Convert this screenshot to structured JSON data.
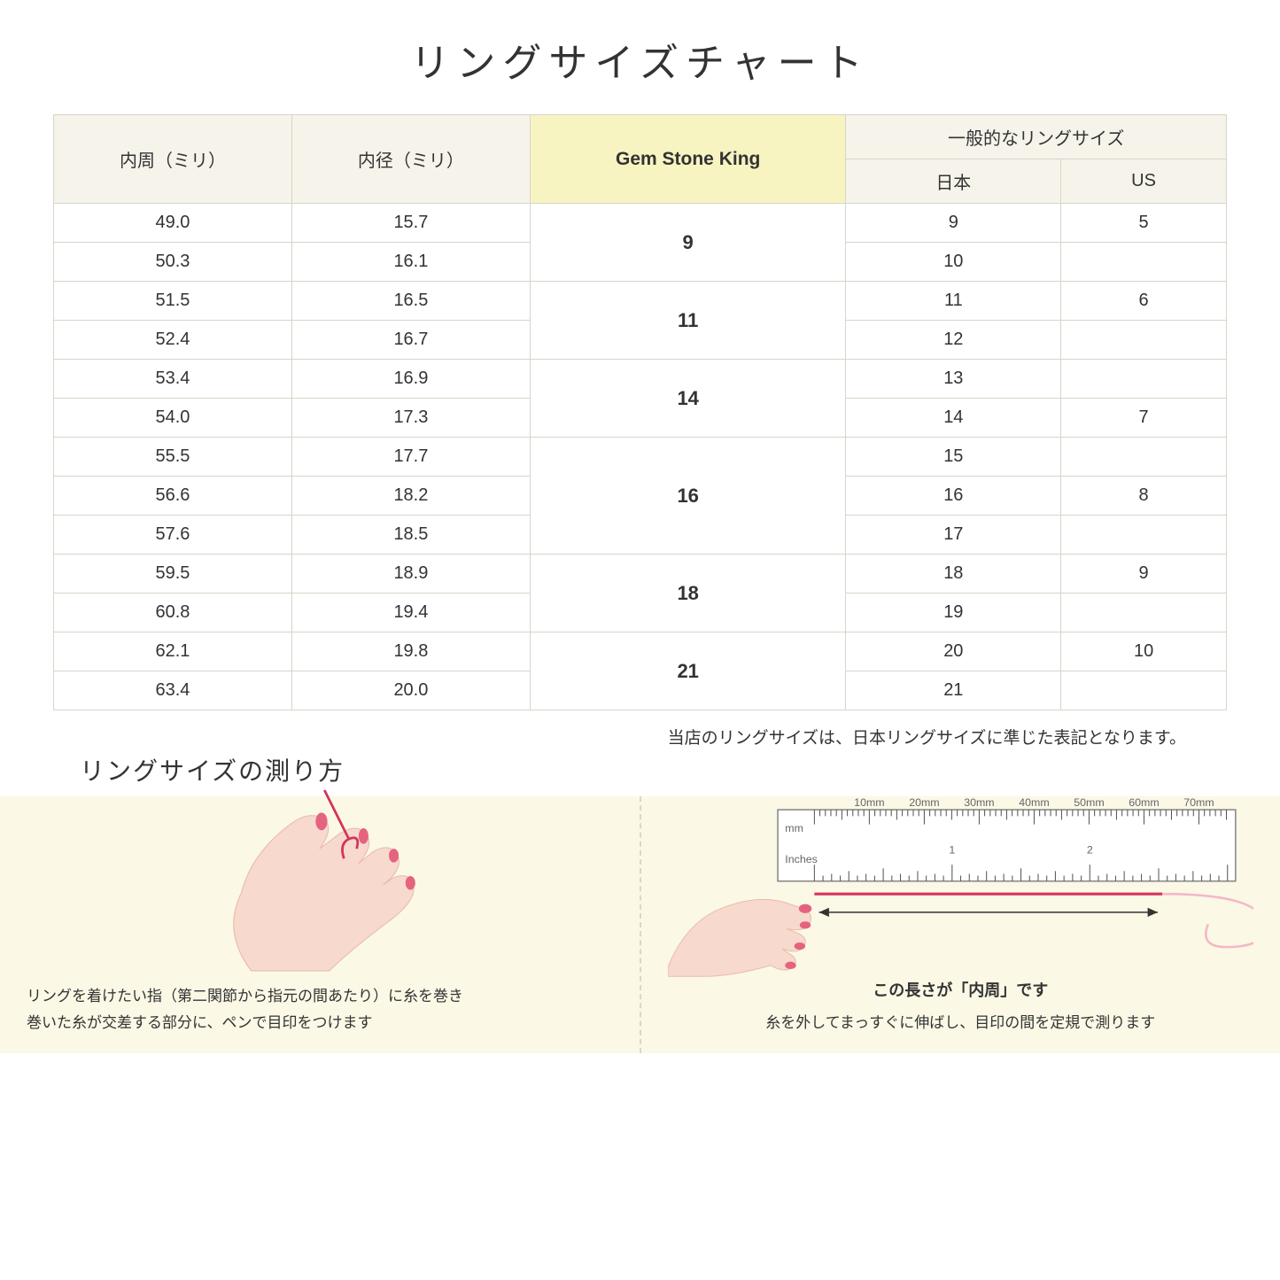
{
  "title": "リングサイズチャート",
  "table": {
    "headers": {
      "circumference": "内周（ミリ）",
      "diameter": "内径（ミリ）",
      "gsk": "Gem Stone King",
      "general_group": "一般的なリングサイズ",
      "japan": "日本",
      "us": "US"
    },
    "groups": [
      {
        "gsk": "9",
        "rows": [
          {
            "c": "49.0",
            "d": "15.7",
            "jp": "9",
            "us": "5"
          },
          {
            "c": "50.3",
            "d": "16.1",
            "jp": "10",
            "us": ""
          }
        ]
      },
      {
        "gsk": "11",
        "rows": [
          {
            "c": "51.5",
            "d": "16.5",
            "jp": "11",
            "us": "6"
          },
          {
            "c": "52.4",
            "d": "16.7",
            "jp": "12",
            "us": ""
          }
        ]
      },
      {
        "gsk": "14",
        "rows": [
          {
            "c": "53.4",
            "d": "16.9",
            "jp": "13",
            "us": ""
          },
          {
            "c": "54.0",
            "d": "17.3",
            "jp": "14",
            "us": "7"
          }
        ]
      },
      {
        "gsk": "16",
        "rows": [
          {
            "c": "55.5",
            "d": "17.7",
            "jp": "15",
            "us": ""
          },
          {
            "c": "56.6",
            "d": "18.2",
            "jp": "16",
            "us": "8"
          },
          {
            "c": "57.6",
            "d": "18.5",
            "jp": "17",
            "us": ""
          }
        ]
      },
      {
        "gsk": "18",
        "rows": [
          {
            "c": "59.5",
            "d": "18.9",
            "jp": "18",
            "us": "9"
          },
          {
            "c": "60.8",
            "d": "19.4",
            "jp": "19",
            "us": ""
          }
        ]
      },
      {
        "gsk": "21",
        "rows": [
          {
            "c": "62.1",
            "d": "19.8",
            "jp": "20",
            "us": "10"
          },
          {
            "c": "63.4",
            "d": "20.0",
            "jp": "21",
            "us": ""
          }
        ]
      }
    ]
  },
  "note": "当店のリングサイズは、日本リングサイズに準じた表記となります。",
  "subheading": "リングサイズの測り方",
  "instructions": {
    "left": {
      "text": "リングを着けたい指（第二関節から指元の間あたり）に糸を巻き\n巻いた糸が交差する部分に、ペンで目印をつけます"
    },
    "right": {
      "caption": "この長さが「内周」です",
      "text": "糸を外してまっすぐに伸ばし、目印の間を定規で測ります",
      "ruler": {
        "unit_mm": "mm",
        "unit_in": "Inches",
        "mm_labels": [
          "10mm",
          "20mm",
          "30mm",
          "40mm",
          "50mm",
          "60mm",
          "70mm"
        ],
        "in_labels": [
          "1",
          "2"
        ]
      }
    }
  },
  "colors": {
    "header_bg": "#f6f4ea",
    "gsk_bg": "#f7f4c2",
    "border": "#d8d4c8",
    "panel_bg": "#fbf8e6",
    "hand_fill": "#f7d9ce",
    "nail": "#e5637f",
    "thread": "#d1355a",
    "ruler_border": "#888"
  }
}
